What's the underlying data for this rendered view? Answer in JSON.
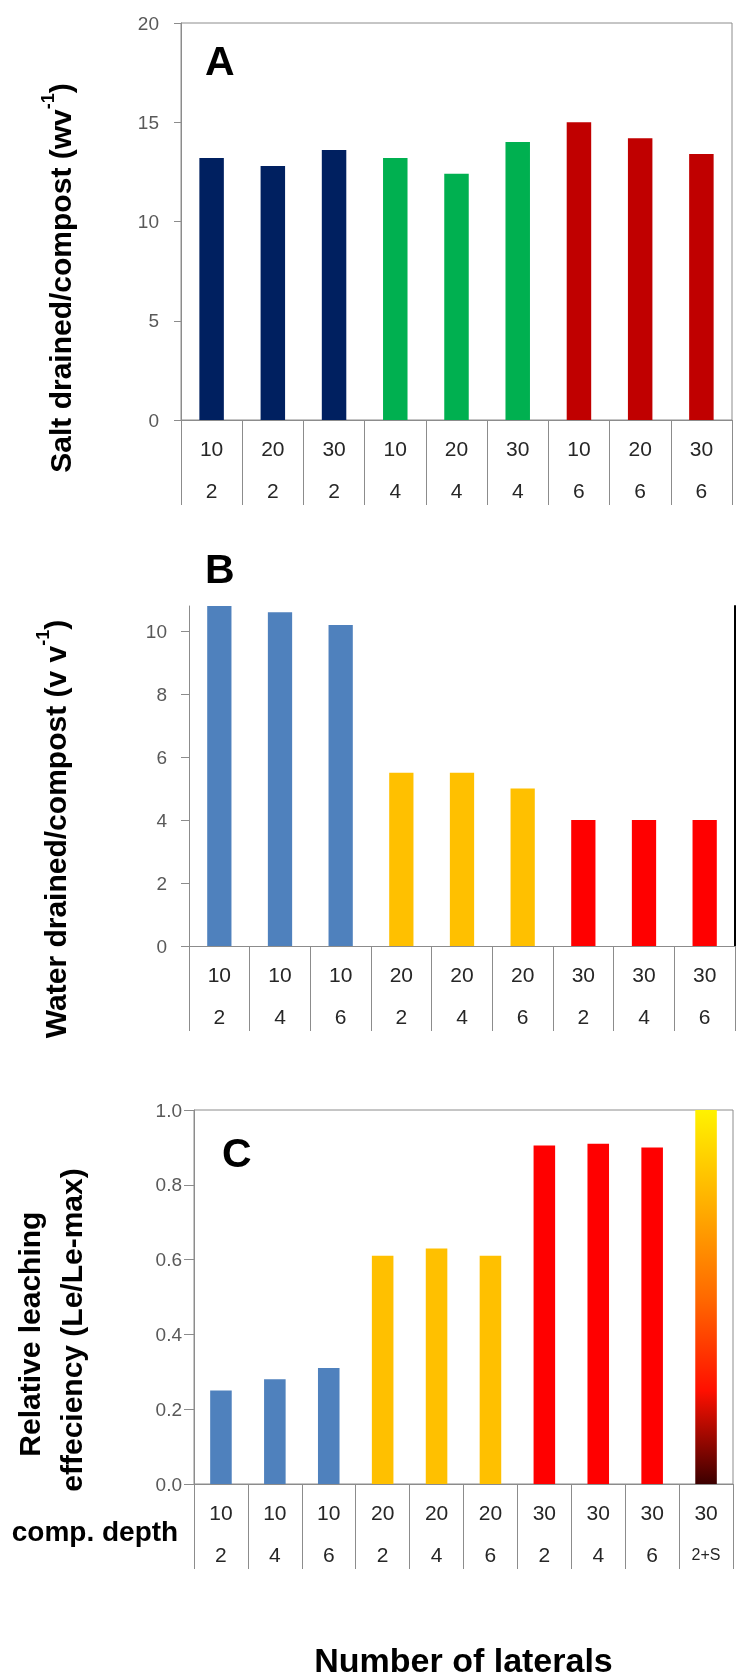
{
  "chart_data": [
    {
      "type": "bar",
      "title": "A",
      "ylabel": "Salt drained/compost (wv$^{-1}$)",
      "categories": [
        "10\n2",
        "20\n2",
        "30\n2",
        "10\n4",
        "20\n4",
        "30\n4",
        "10\n6",
        "20\n6",
        "30\n6"
      ],
      "values": [
        13.2,
        12.8,
        13.6,
        13.2,
        12.4,
        14.0,
        15.0,
        14.2,
        13.4
      ],
      "colors": [
        "#002060",
        "#002060",
        "#002060",
        "#00b050",
        "#00b050",
        "#00b050",
        "#c00000",
        "#c00000",
        "#c00000"
      ],
      "ylim": [
        0,
        20
      ],
      "yticks": [
        0,
        5,
        10,
        15,
        20
      ],
      "grid": false
    },
    {
      "type": "bar",
      "title": "B",
      "ylabel": "Water drained/compost (v v$^{-1}$)",
      "categories": [
        "10\n2",
        "10\n4",
        "10\n6",
        "20\n2",
        "20\n4",
        "20\n6",
        "30\n2",
        "30\n4",
        "30\n6"
      ],
      "values": [
        10.8,
        10.6,
        10.2,
        5.5,
        5.5,
        5.0,
        4.0,
        4.0,
        4.0
      ],
      "colors": [
        "#4f81bd",
        "#4f81bd",
        "#4f81bd",
        "#ffc000",
        "#ffc000",
        "#ffc000",
        "#ff0000",
        "#ff0000",
        "#ff0000"
      ],
      "ylim": [
        0,
        10.8
      ],
      "yticks": [
        0,
        2,
        4,
        6,
        8,
        10
      ],
      "grid": false
    },
    {
      "type": "bar",
      "title": "C",
      "ylabel": "Relative leaching effeciency (Le/Le-max)",
      "xlabel": "Number of laterals",
      "annotations": [
        "comp. depth"
      ],
      "categories": [
        "10\n2",
        "10\n4",
        "10\n6",
        "20\n2",
        "20\n4",
        "20\n6",
        "30\n2",
        "30\n4",
        "30\n6",
        "30\n2+S"
      ],
      "values": [
        0.25,
        0.28,
        0.31,
        0.61,
        0.63,
        0.61,
        0.905,
        0.91,
        0.9,
        1.0
      ],
      "colors": [
        "#4f81bd",
        "#4f81bd",
        "#4f81bd",
        "#ffc000",
        "#ffc000",
        "#ffc000",
        "#ff0000",
        "#ff0000",
        "#ff0000",
        [
          "#fff200",
          "#ffb000",
          "#ff6a00",
          "#ff1000",
          "#3c0000"
        ]
      ],
      "ylim": [
        0,
        1
      ],
      "yticks": [
        {
          "value": 0,
          "label": "0.0"
        },
        {
          "value": 0.2,
          "label": "0.2"
        },
        {
          "value": 0.4,
          "label": "0.4"
        },
        {
          "value": 0.6,
          "label": "0.6"
        },
        {
          "value": 0.8,
          "label": "0.8"
        },
        {
          "value": 1,
          "label": "1.0"
        }
      ],
      "grid": false
    }
  ]
}
